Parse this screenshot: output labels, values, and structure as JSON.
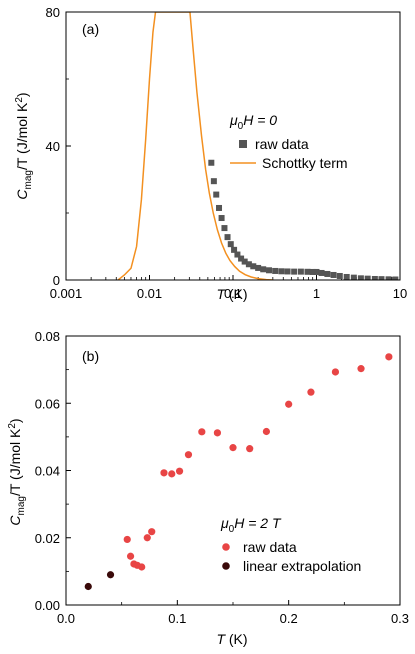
{
  "chart_data": [
    {
      "type": "scatter",
      "panel_label": "(a)",
      "xscale": "log",
      "xlim": [
        0.001,
        10
      ],
      "ylim": [
        0,
        80
      ],
      "x_ticks": [
        "0.001",
        "0.01",
        "0.1",
        "1",
        "10"
      ],
      "y_ticks": [
        "0",
        "40",
        "80"
      ],
      "x_tick_values": [
        0.001,
        0.01,
        0.1,
        1,
        10
      ],
      "y_tick_values": [
        0,
        40,
        80
      ],
      "xlabel": {
        "main": "T",
        "unit": " (K)"
      },
      "ylabel": {
        "main": "C",
        "sub": "mag",
        "mid": "/T (J/mol K",
        "sup": "2",
        "end": ")"
      },
      "legend": {
        "title": {
          "mu": "μ",
          "zero": "0",
          "rest": "H = 0"
        },
        "placement": "center-right",
        "entries": [
          "raw data",
          "Schottky term"
        ]
      },
      "colors": {
        "raw": "#555555",
        "schottky": "#f39020"
      },
      "series": [
        {
          "name": "raw data",
          "marker": "square",
          "points": [
            [
              0.055,
              35.0
            ],
            [
              0.059,
              29.5
            ],
            [
              0.063,
              25.5
            ],
            [
              0.068,
              21.5
            ],
            [
              0.073,
              18.5
            ],
            [
              0.079,
              15.5
            ],
            [
              0.086,
              12.8
            ],
            [
              0.094,
              10.7
            ],
            [
              0.103,
              9.0
            ],
            [
              0.113,
              7.6
            ],
            [
              0.125,
              6.4
            ],
            [
              0.138,
              5.5
            ],
            [
              0.155,
              4.7
            ],
            [
              0.175,
              4.1
            ],
            [
              0.2,
              3.6
            ],
            [
              0.23,
              3.2
            ],
            [
              0.27,
              2.9
            ],
            [
              0.32,
              2.7
            ],
            [
              0.38,
              2.6
            ],
            [
              0.45,
              2.55
            ],
            [
              0.54,
              2.5
            ],
            [
              0.65,
              2.5
            ],
            [
              0.78,
              2.45
            ],
            [
              0.9,
              2.4
            ],
            [
              1.0,
              2.4
            ],
            [
              1.15,
              2.1
            ],
            [
              1.35,
              1.8
            ],
            [
              1.6,
              1.5
            ],
            [
              1.9,
              1.2
            ],
            [
              2.3,
              0.9
            ],
            [
              2.8,
              0.7
            ],
            [
              3.4,
              0.5
            ],
            [
              4.1,
              0.4
            ],
            [
              5.0,
              0.3
            ],
            [
              6.0,
              0.25
            ],
            [
              7.3,
              0.2
            ],
            [
              8.8,
              0.15
            ]
          ]
        },
        {
          "name": "Schottky term",
          "line": true,
          "points": [
            [
              0.0042,
              0
            ],
            [
              0.005,
              1.5
            ],
            [
              0.006,
              3.5
            ],
            [
              0.007,
              10
            ],
            [
              0.008,
              24
            ],
            [
              0.009,
              42
            ],
            [
              0.01,
              60
            ],
            [
              0.011,
              74
            ],
            [
              0.0118,
              80
            ],
            [
              0.0305,
              80
            ],
            [
              0.033,
              70
            ],
            [
              0.037,
              56
            ],
            [
              0.042,
              43
            ],
            [
              0.047,
              33
            ],
            [
              0.052,
              26
            ],
            [
              0.058,
              20
            ],
            [
              0.065,
              15
            ],
            [
              0.073,
              11
            ],
            [
              0.082,
              8
            ],
            [
              0.092,
              5.8
            ],
            [
              0.105,
              4.0
            ],
            [
              0.12,
              2.6
            ],
            [
              0.14,
              1.6
            ],
            [
              0.165,
              0.9
            ],
            [
              0.2,
              0.4
            ],
            [
              0.25,
              0.1
            ],
            [
              0.3,
              0.0
            ]
          ]
        }
      ]
    },
    {
      "type": "scatter",
      "panel_label": "(b)",
      "xlim": [
        0,
        0.3
      ],
      "ylim": [
        0,
        0.08
      ],
      "x_ticks": [
        "0.0",
        "0.1",
        "0.2",
        "0.3"
      ],
      "y_ticks": [
        "0.00",
        "0.02",
        "0.04",
        "0.06",
        "0.08"
      ],
      "x_tick_values": [
        0,
        0.1,
        0.2,
        0.3
      ],
      "y_tick_values": [
        0,
        0.02,
        0.04,
        0.06,
        0.08
      ],
      "xlabel": {
        "main": "T",
        "unit": " (K)"
      },
      "ylabel": {
        "main": "C",
        "sub": "mag",
        "mid": "/T (J/mol K",
        "sup": "2",
        "end": ")"
      },
      "legend": {
        "title": {
          "mu": "μ",
          "zero": "0",
          "rest": "H = 2 T"
        },
        "placement": "bottom-right",
        "entries": [
          "raw data",
          "linear extrapolation"
        ]
      },
      "colors": {
        "raw": "#e84545",
        "extrap": "#3a0a0a"
      },
      "series": [
        {
          "name": "raw data",
          "marker": "circle",
          "points": [
            [
              0.055,
              0.0195
            ],
            [
              0.058,
              0.0145
            ],
            [
              0.061,
              0.0122
            ],
            [
              0.064,
              0.0118
            ],
            [
              0.068,
              0.0113
            ],
            [
              0.073,
              0.02
            ],
            [
              0.077,
              0.0218
            ],
            [
              0.088,
              0.0393
            ],
            [
              0.095,
              0.039
            ],
            [
              0.102,
              0.0398
            ],
            [
              0.11,
              0.0447
            ],
            [
              0.122,
              0.0515
            ],
            [
              0.136,
              0.0512
            ],
            [
              0.15,
              0.0468
            ],
            [
              0.165,
              0.0465
            ],
            [
              0.18,
              0.0516
            ],
            [
              0.2,
              0.0597
            ],
            [
              0.22,
              0.0633
            ],
            [
              0.242,
              0.0693
            ],
            [
              0.265,
              0.0703
            ],
            [
              0.29,
              0.0738
            ]
          ]
        },
        {
          "name": "linear extrapolation",
          "marker": "circle",
          "points": [
            [
              0.02,
              0.0055
            ],
            [
              0.04,
              0.009
            ]
          ]
        }
      ]
    }
  ]
}
